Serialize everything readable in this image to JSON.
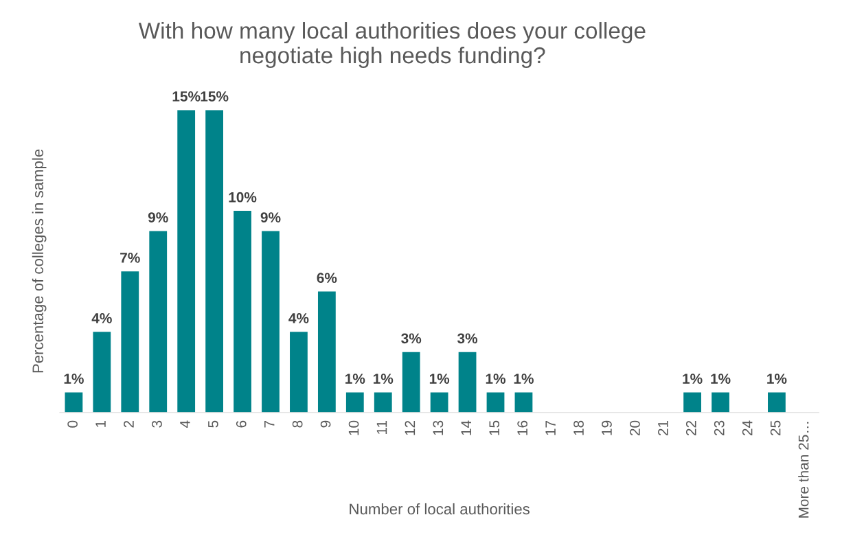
{
  "chart_data": {
    "type": "bar",
    "title": "With how many local authorities does your college\nnegotiate high needs funding?",
    "xlabel": "Number of local authorities",
    "ylabel": "Percentage of colleges in sample",
    "categories": [
      "0",
      "1",
      "2",
      "3",
      "4",
      "5",
      "6",
      "7",
      "8",
      "9",
      "10",
      "11",
      "12",
      "13",
      "14",
      "15",
      "16",
      "17",
      "18",
      "19",
      "20",
      "21",
      "22",
      "23",
      "24",
      "25",
      "More than 25…"
    ],
    "values": [
      1,
      4,
      7,
      9,
      15,
      15,
      10,
      9,
      4,
      6,
      1,
      1,
      3,
      1,
      3,
      1,
      1,
      0,
      0,
      0,
      0,
      0,
      1,
      1,
      0,
      1,
      0
    ],
    "value_labels": [
      "1%",
      "4%",
      "7%",
      "9%",
      "15%",
      "15%",
      "10%",
      "9%",
      "4%",
      "6%",
      "1%",
      "1%",
      "3%",
      "1%",
      "3%",
      "1%",
      "1%",
      null,
      null,
      null,
      null,
      null,
      "1%",
      "1%",
      null,
      "1%",
      null
    ],
    "color": "#00838a",
    "tick_labels": "x",
    "grid": false
  }
}
